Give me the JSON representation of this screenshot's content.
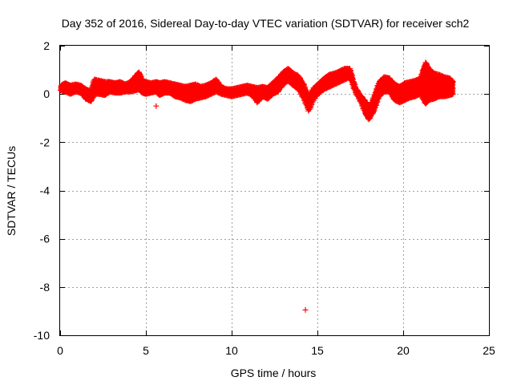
{
  "chart_data": {
    "type": "scatter",
    "title": "Day 352 of 2016, Sidereal Day-to-day VTEC variation (SDTVAR) for receiver sch2",
    "xlabel": "GPS time / hours",
    "ylabel": "SDTVAR / TECUs",
    "xlim": [
      0,
      25
    ],
    "ylim": [
      -10,
      2
    ],
    "xticks": [
      0,
      5,
      10,
      15,
      20,
      25
    ],
    "yticks": [
      -10,
      -8,
      -6,
      -4,
      -2,
      0,
      2
    ],
    "grid": true,
    "marker": "plus",
    "series_color": "#ff0000",
    "series": [
      {
        "name": "SDTVAR",
        "band_trace": [
          [
            0.05,
            0.15,
            0.35
          ],
          [
            0.3,
            0.1,
            0.45
          ],
          [
            0.6,
            0.0,
            0.35
          ],
          [
            0.9,
            0.1,
            0.4
          ],
          [
            1.2,
            0.05,
            0.35
          ],
          [
            1.5,
            -0.2,
            0.2
          ],
          [
            1.8,
            -0.3,
            0.1
          ],
          [
            2.0,
            0.0,
            0.6
          ],
          [
            2.3,
            0.0,
            0.55
          ],
          [
            2.6,
            -0.05,
            0.5
          ],
          [
            2.9,
            0.1,
            0.5
          ],
          [
            3.2,
            0.05,
            0.45
          ],
          [
            3.5,
            0.05,
            0.5
          ],
          [
            3.8,
            0.1,
            0.4
          ],
          [
            4.1,
            0.1,
            0.5
          ],
          [
            4.4,
            0.15,
            0.75
          ],
          [
            4.6,
            0.2,
            0.9
          ],
          [
            4.8,
            0.05,
            0.55
          ],
          [
            5.0,
            0.0,
            0.5
          ],
          [
            5.3,
            0.05,
            0.45
          ],
          [
            5.6,
            0.1,
            0.5
          ],
          [
            5.8,
            -0.05,
            0.45
          ],
          [
            6.1,
            0.05,
            0.5
          ],
          [
            6.4,
            0.05,
            0.45
          ],
          [
            6.7,
            -0.1,
            0.4
          ],
          [
            7.0,
            -0.15,
            0.35
          ],
          [
            7.3,
            -0.25,
            0.3
          ],
          [
            7.6,
            -0.3,
            0.35
          ],
          [
            7.9,
            -0.2,
            0.4
          ],
          [
            8.2,
            -0.15,
            0.3
          ],
          [
            8.5,
            -0.1,
            0.35
          ],
          [
            8.8,
            0.0,
            0.45
          ],
          [
            9.1,
            0.1,
            0.6
          ],
          [
            9.4,
            0.0,
            0.3
          ],
          [
            9.7,
            -0.05,
            0.2
          ],
          [
            10.0,
            -0.1,
            0.2
          ],
          [
            10.3,
            -0.05,
            0.25
          ],
          [
            10.6,
            0.0,
            0.3
          ],
          [
            10.9,
            0.05,
            0.35
          ],
          [
            11.2,
            -0.05,
            0.3
          ],
          [
            11.5,
            -0.35,
            0.25
          ],
          [
            11.8,
            -0.1,
            0.3
          ],
          [
            12.1,
            -0.2,
            0.25
          ],
          [
            12.4,
            0.0,
            0.45
          ],
          [
            12.7,
            0.1,
            0.65
          ],
          [
            13.0,
            0.4,
            0.9
          ],
          [
            13.3,
            0.55,
            1.05
          ],
          [
            13.6,
            0.35,
            0.85
          ],
          [
            13.9,
            0.2,
            0.75
          ],
          [
            14.2,
            -0.2,
            0.4
          ],
          [
            14.5,
            -0.7,
            -0.1
          ],
          [
            14.8,
            -0.2,
            0.25
          ],
          [
            15.1,
            0.05,
            0.45
          ],
          [
            15.4,
            0.2,
            0.65
          ],
          [
            15.7,
            0.3,
            0.8
          ],
          [
            16.0,
            0.4,
            0.85
          ],
          [
            16.3,
            0.5,
            0.95
          ],
          [
            16.6,
            0.6,
            1.05
          ],
          [
            16.9,
            0.7,
            1.05
          ],
          [
            17.2,
            0.1,
            0.3
          ],
          [
            17.5,
            -0.3,
            -0.05
          ],
          [
            17.8,
            -0.8,
            -0.3
          ],
          [
            18.0,
            -1.05,
            -0.6
          ],
          [
            18.3,
            -0.7,
            -0.1
          ],
          [
            18.6,
            -0.1,
            0.5
          ],
          [
            18.9,
            0.1,
            0.7
          ],
          [
            19.2,
            0.1,
            0.65
          ],
          [
            19.5,
            -0.25,
            0.4
          ],
          [
            19.8,
            -0.35,
            0.3
          ],
          [
            20.1,
            -0.25,
            0.45
          ],
          [
            20.4,
            -0.15,
            0.5
          ],
          [
            20.7,
            -0.1,
            0.55
          ],
          [
            21.0,
            0.0,
            0.65
          ],
          [
            21.3,
            -0.4,
            1.3
          ],
          [
            21.5,
            -0.25,
            1.05
          ],
          [
            21.8,
            -0.2,
            0.85
          ],
          [
            22.1,
            -0.1,
            0.8
          ],
          [
            22.4,
            -0.1,
            0.7
          ],
          [
            22.7,
            -0.05,
            0.65
          ],
          [
            22.9,
            0.0,
            0.5
          ]
        ],
        "outliers": [
          [
            5.6,
            -0.5
          ],
          [
            7.8,
            0.35
          ],
          [
            14.3,
            -8.95
          ]
        ]
      }
    ]
  }
}
